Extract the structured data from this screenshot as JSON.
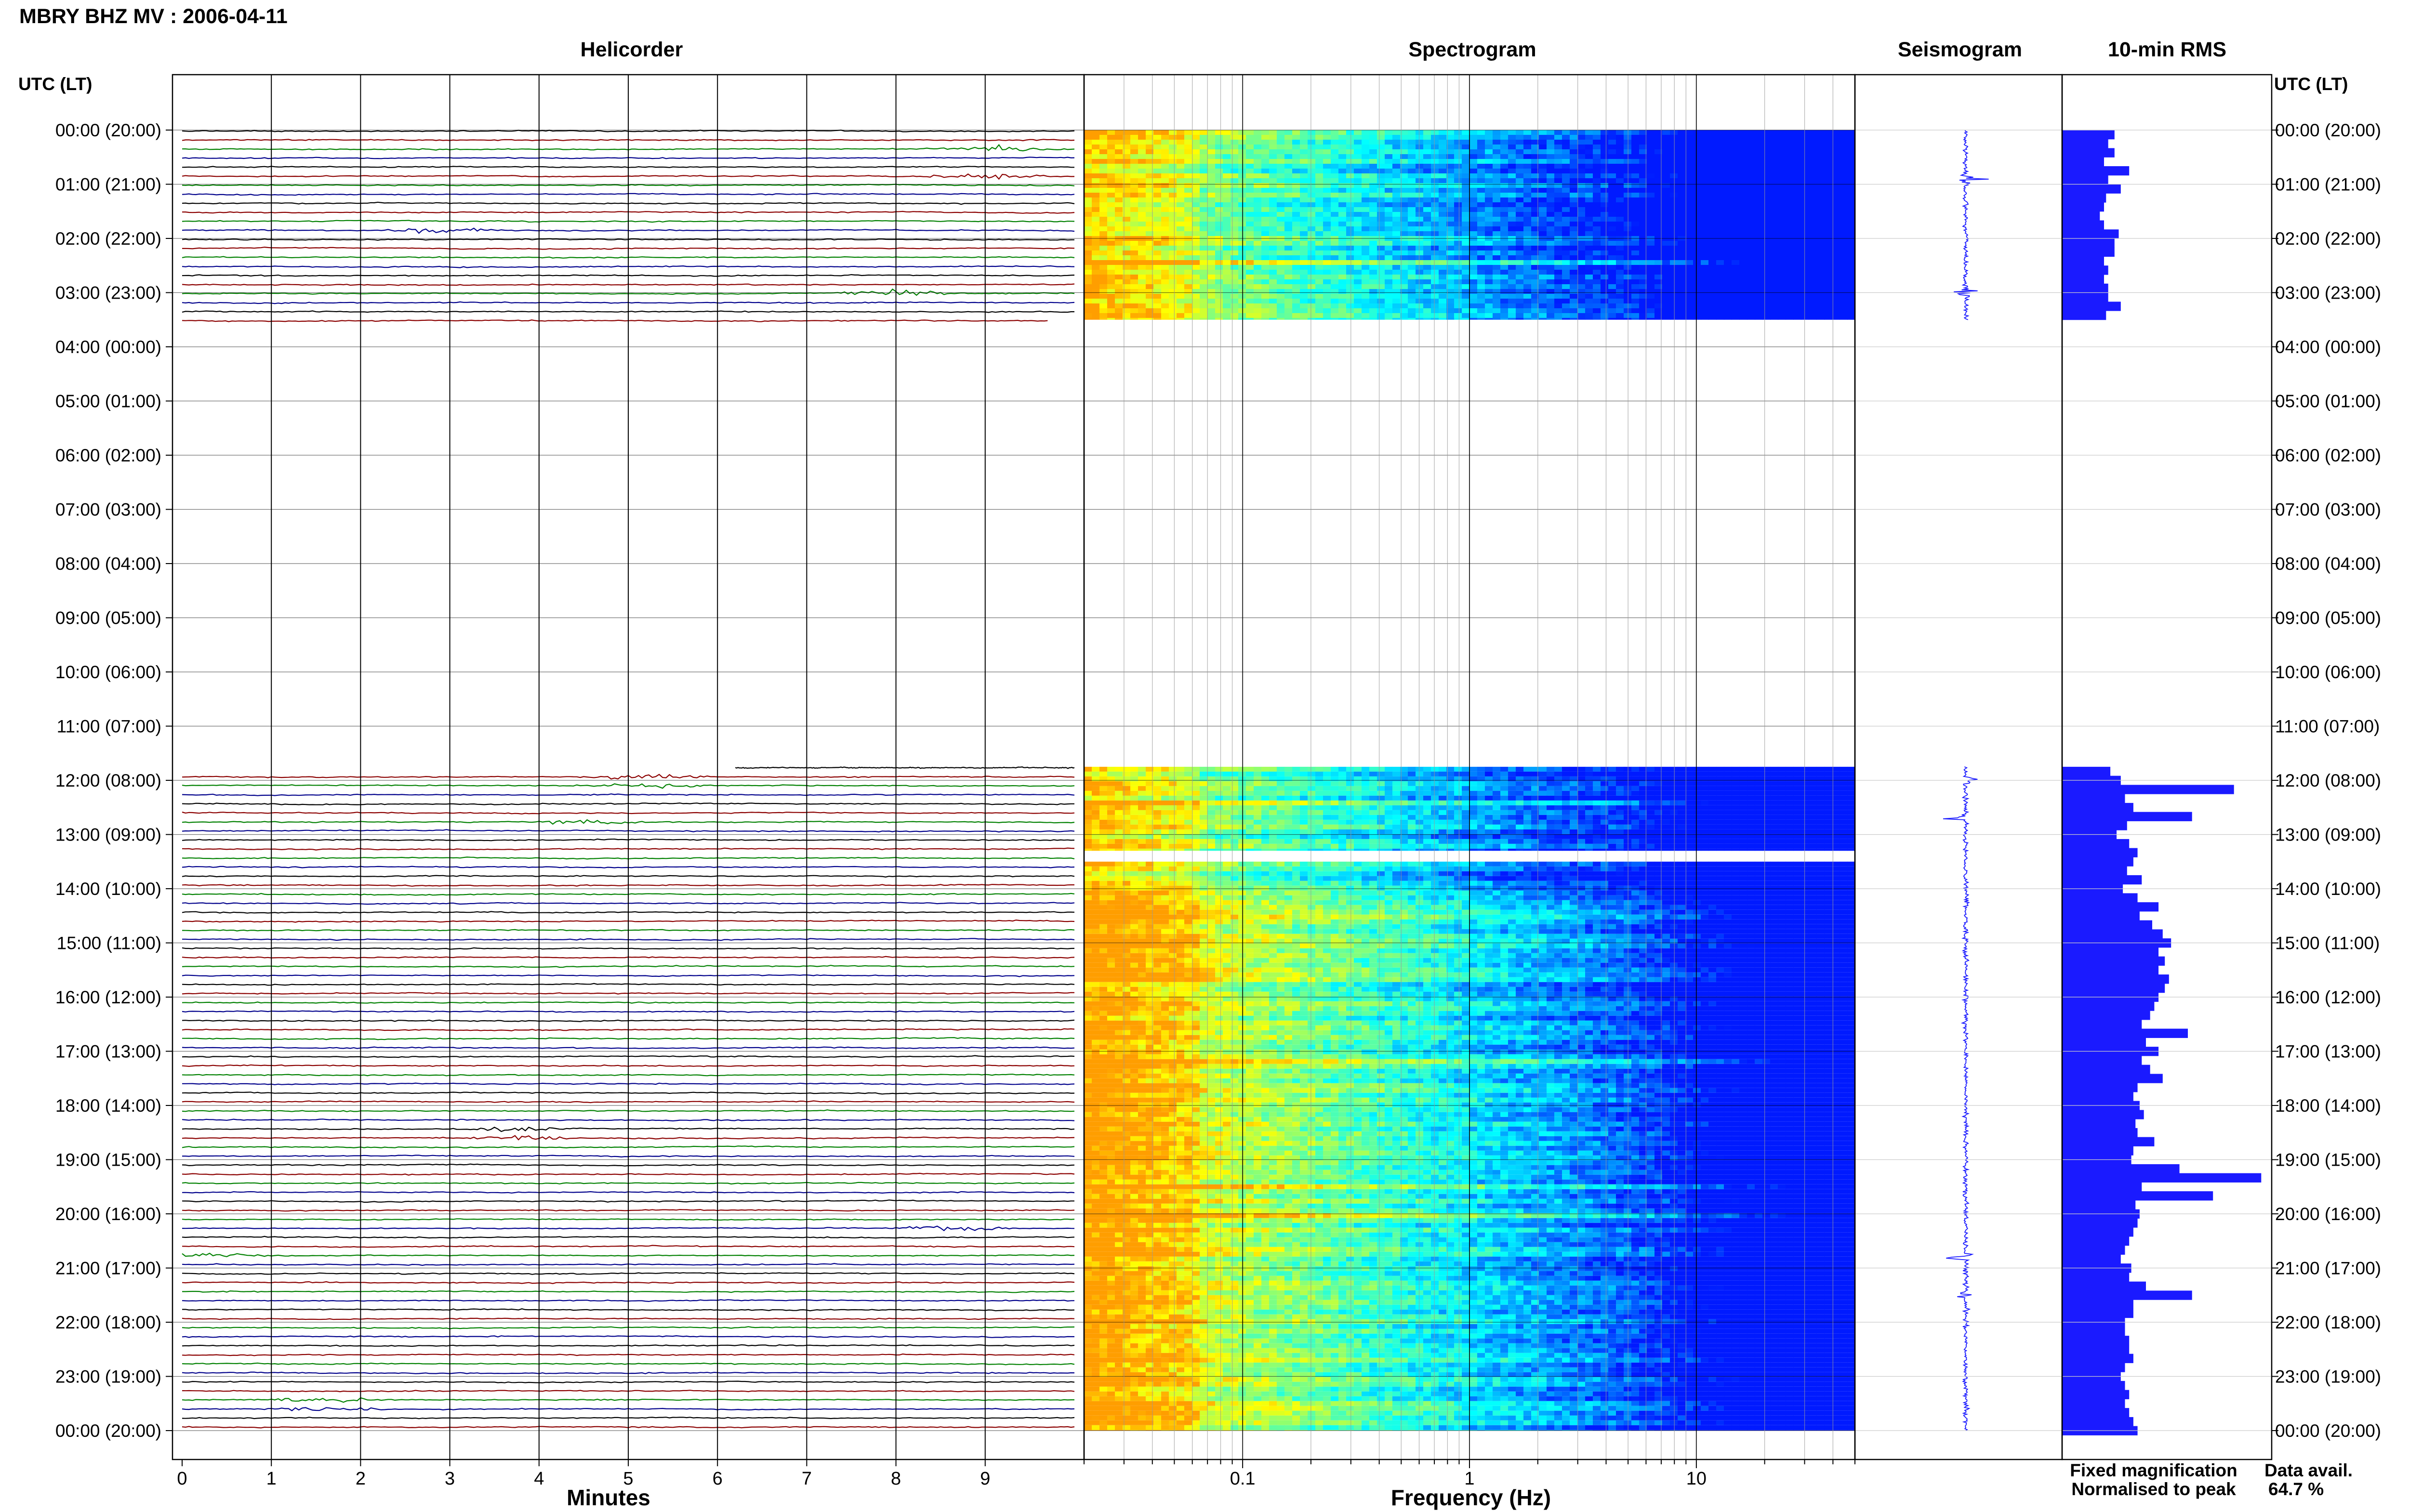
{
  "header": {
    "title": "MBRY BHZ MV : 2006-04-11"
  },
  "panels": {
    "helicorder": "Helicorder",
    "spectrogram": "Spectrogram",
    "seismogram": "Seismogram",
    "rms": "10-min RMS"
  },
  "axis_left_label": "UTC (LT)",
  "axis_right_label": "UTC (LT)",
  "xlabels": {
    "helicorder": "Minutes",
    "spectrogram": "Frequency (Hz)"
  },
  "legend": {
    "fixed": "Fixed magnification",
    "normalised": "Normalised to peak",
    "fixed_color": "#1a1aff",
    "normalised_color": "#ff1a1a"
  },
  "data_avail": {
    "label": "Data avail.",
    "value": "64.7 %"
  },
  "trace_colors": [
    "#000000",
    "#8b0000",
    "#008000",
    "#00008b"
  ],
  "chart_data": [
    {
      "type": "line",
      "title": "Helicorder",
      "xlabel": "Minutes",
      "x_ticks": [
        "0",
        "1",
        "2",
        "3",
        "4",
        "5",
        "6",
        "7",
        "8",
        "9"
      ],
      "xlim": [
        0,
        10
      ],
      "time_labels": [
        "00:00 (20:00)",
        "01:00 (21:00)",
        "02:00 (22:00)",
        "03:00 (23:00)",
        "04:00 (00:00)",
        "05:00 (01:00)",
        "06:00 (02:00)",
        "07:00 (03:00)",
        "08:00 (04:00)",
        "09:00 (05:00)",
        "10:00 (06:00)",
        "11:00 (07:00)",
        "12:00 (08:00)",
        "13:00 (09:00)",
        "14:00 (10:00)",
        "15:00 (11:00)",
        "16:00 (12:00)",
        "17:00 (13:00)",
        "18:00 (14:00)",
        "19:00 (15:00)",
        "20:00 (16:00)",
        "21:00 (17:00)",
        "22:00 (18:00)",
        "23:00 (19:00)",
        "00:00 (20:00)"
      ],
      "data_periods_hours": [
        [
          0,
          3.5
        ],
        [
          11.75,
          24
        ]
      ],
      "notable_events": [
        {
          "hour": 0.4,
          "minute": 9.2,
          "color": "green"
        },
        {
          "hour": 0.8,
          "minute": 9.0,
          "color": "blue"
        },
        {
          "hour": 1.8,
          "minute": 2.8,
          "color": "green"
        },
        {
          "hour": 3.0,
          "minute": 8.0,
          "color": "blue"
        },
        {
          "hour": 12.0,
          "minute": 5.2,
          "color": "black"
        },
        {
          "hour": 12.7,
          "minute": 4.5,
          "color": "black"
        },
        {
          "hour": 18.5,
          "minute": 3.8,
          "color": "darkred"
        },
        {
          "hour": 20.3,
          "minute": 8.6,
          "color": "blue"
        },
        {
          "hour": 20.8,
          "minute": 0.5,
          "color": "darkred"
        },
        {
          "hour": 23.5,
          "minute": 1.6,
          "color": "darkred"
        }
      ]
    },
    {
      "type": "heatmap",
      "title": "Spectrogram",
      "xlabel": "Frequency (Hz)",
      "x_scale": "log",
      "xlim": [
        0.02,
        50
      ],
      "x_ticks": [
        "0.1",
        "1",
        "10"
      ],
      "colormap": "jet",
      "data_periods_hours": [
        [
          0,
          3.5
        ],
        [
          11.75,
          13.3
        ],
        [
          13.5,
          24
        ]
      ],
      "dominant_band_hz": [
        0.02,
        0.2
      ],
      "narrow_lines_hz": [
        10.5,
        25
      ]
    },
    {
      "type": "line",
      "title": "Seismogram",
      "color": "#1a1aff",
      "data_periods_hours": [
        [
          0,
          3.5
        ],
        [
          11.75,
          24
        ]
      ],
      "bursts_hours": [
        0.9,
        3.0,
        12.0,
        12.7,
        20.8,
        21.5
      ]
    },
    {
      "type": "bar",
      "title": "10-min RMS",
      "orientation": "horizontal",
      "color": "#1a1aff",
      "bin_minutes": 10,
      "xlim": [
        0,
        1
      ],
      "series": [
        {
          "start_hour": 0.0,
          "values": [
            0.25,
            0.22,
            0.25,
            0.2,
            0.32,
            0.22,
            0.28,
            0.21,
            0.2,
            0.18,
            0.2,
            0.27,
            0.25,
            0.25,
            0.2,
            0.22,
            0.2,
            0.22,
            0.22,
            0.28,
            0.21
          ]
        },
        {
          "start_hour": 11.75,
          "values": [
            0.23,
            0.28,
            0.82,
            0.3,
            0.34,
            0.62,
            0.31,
            0.26,
            0.32,
            0.36,
            0.34,
            0.31,
            0.38,
            0.29,
            0.36,
            0.46,
            0.37,
            0.43,
            0.48,
            0.52,
            0.46,
            0.49,
            0.46,
            0.51,
            0.49,
            0.46,
            0.44,
            0.42,
            0.38,
            0.6,
            0.4,
            0.46,
            0.38,
            0.42,
            0.48,
            0.36,
            0.34,
            0.37,
            0.39,
            0.35,
            0.36,
            0.44,
            0.34,
            0.33,
            0.56,
            0.95,
            0.38,
            0.72,
            0.35,
            0.37,
            0.36,
            0.34,
            0.32,
            0.3,
            0.28,
            0.33,
            0.32,
            0.4,
            0.62,
            0.34,
            0.34,
            0.3,
            0.3,
            0.32,
            0.32,
            0.34,
            0.3,
            0.28,
            0.3,
            0.32,
            0.3,
            0.32,
            0.34,
            0.36
          ]
        }
      ]
    }
  ]
}
